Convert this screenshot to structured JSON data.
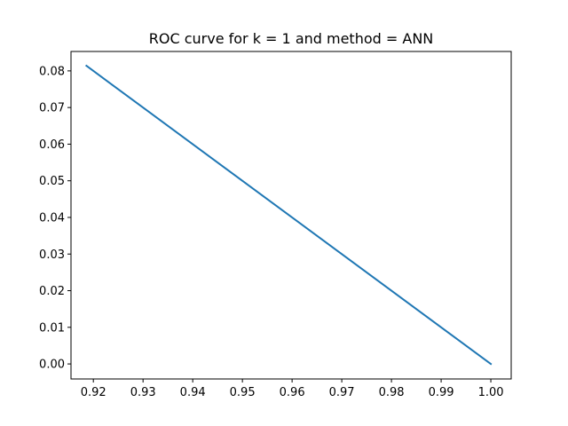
{
  "chart_data": {
    "type": "line",
    "title": "ROC curve for k = 1 and method = ANN",
    "xlabel": "",
    "ylabel": "",
    "xlim": [
      0.9155,
      1.0041
    ],
    "ylim": [
      -0.0041,
      0.0853
    ],
    "x_ticks": [
      0.92,
      0.93,
      0.94,
      0.95,
      0.96,
      0.97,
      0.98,
      0.99,
      1.0
    ],
    "x_tick_labels": [
      "0.92",
      "0.93",
      "0.94",
      "0.95",
      "0.96",
      "0.97",
      "0.98",
      "0.99",
      "1.00"
    ],
    "y_ticks": [
      0.0,
      0.01,
      0.02,
      0.03,
      0.04,
      0.05,
      0.06,
      0.07,
      0.08
    ],
    "y_tick_labels": [
      "0.00",
      "0.01",
      "0.02",
      "0.03",
      "0.04",
      "0.05",
      "0.06",
      "0.07",
      "0.08"
    ],
    "grid": false,
    "legend": "none",
    "series": [
      {
        "color": "#1f77b4",
        "x": [
          0.9186,
          1.0
        ],
        "y": [
          0.0814,
          0.0
        ]
      }
    ]
  }
}
